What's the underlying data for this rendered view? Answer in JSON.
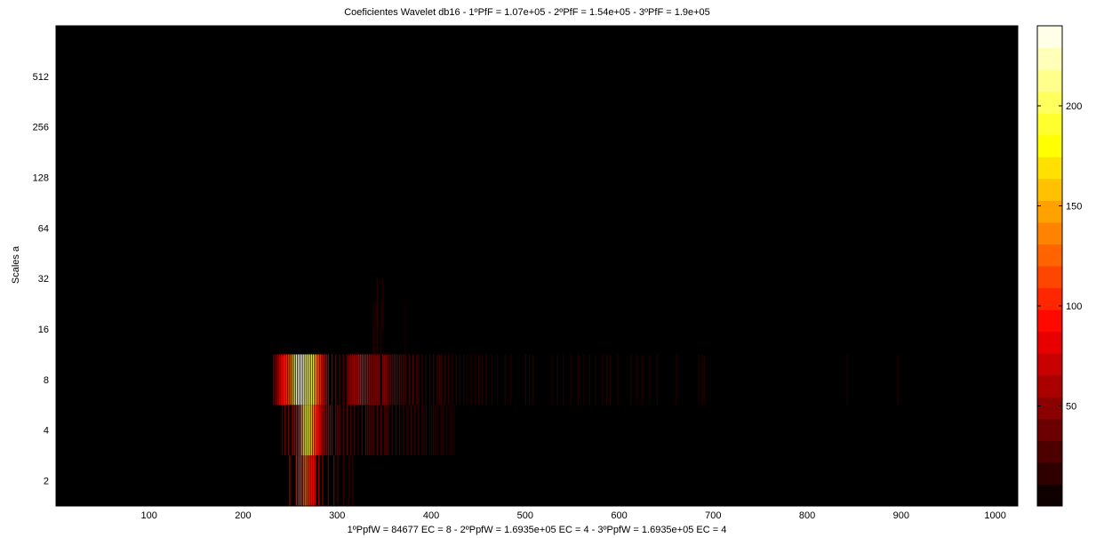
{
  "chart_data": {
    "type": "heatmap",
    "title": "Coeficientes Wavelet db16 - 1ºPfF = 1.07e+05 - 2ºPfF = 1.54e+05 - 3ºPfF = 1.9e+05",
    "xlabel": "1ºPpfW = 84677 EC = 8  -  2ºPpfW = 1.6935e+05 EC = 4  -  3ºPpfW = 1.6935e+05 EC = 4",
    "ylabel": "Scales a",
    "x_range": [
      1,
      1024
    ],
    "x_ticks": [
      100,
      200,
      300,
      400,
      500,
      600,
      700,
      800,
      900,
      1000
    ],
    "y_scale": "log2",
    "y_ticks": [
      2,
      4,
      8,
      16,
      32,
      64,
      128,
      256,
      512
    ],
    "background_value": 0,
    "colormap": "hot",
    "colorbar": {
      "range": [
        0,
        240
      ],
      "ticks": [
        50,
        100,
        150,
        200
      ],
      "steps": 22
    },
    "rows": [
      {
        "scale": 2,
        "bars": [
          [
            249,
            55
          ],
          [
            256,
            80
          ],
          [
            258,
            90
          ],
          [
            260,
            110
          ],
          [
            262,
            95
          ],
          [
            264,
            120
          ],
          [
            266,
            130
          ],
          [
            268,
            115
          ],
          [
            270,
            105
          ],
          [
            272,
            95
          ],
          [
            274,
            85
          ],
          [
            276,
            70
          ],
          [
            280,
            60
          ],
          [
            284,
            45
          ],
          [
            290,
            35
          ],
          [
            296,
            40
          ],
          [
            300,
            25
          ],
          [
            306,
            20
          ],
          [
            312,
            15
          ],
          [
            316,
            15
          ]
        ]
      },
      {
        "scale": 4,
        "bars": [
          [
            241,
            30
          ],
          [
            244,
            35
          ],
          [
            248,
            45
          ],
          [
            252,
            55
          ],
          [
            254,
            60
          ],
          [
            256,
            70
          ],
          [
            258,
            90
          ],
          [
            260,
            110
          ],
          [
            262,
            140
          ],
          [
            264,
            170
          ],
          [
            266,
            185
          ],
          [
            268,
            200
          ],
          [
            270,
            185
          ],
          [
            272,
            160
          ],
          [
            274,
            140
          ],
          [
            276,
            120
          ],
          [
            278,
            100
          ],
          [
            280,
            90
          ],
          [
            282,
            80
          ],
          [
            284,
            70
          ],
          [
            286,
            65
          ],
          [
            288,
            55
          ],
          [
            290,
            55
          ],
          [
            292,
            50
          ],
          [
            294,
            45
          ],
          [
            298,
            40
          ],
          [
            300,
            40
          ],
          [
            302,
            35
          ],
          [
            306,
            30
          ],
          [
            310,
            30
          ],
          [
            314,
            25
          ],
          [
            318,
            25
          ],
          [
            322,
            20
          ],
          [
            326,
            30
          ],
          [
            330,
            35
          ],
          [
            332,
            30
          ],
          [
            334,
            35
          ],
          [
            336,
            30
          ],
          [
            338,
            28
          ],
          [
            342,
            30
          ],
          [
            346,
            28
          ],
          [
            350,
            25
          ],
          [
            352,
            30
          ],
          [
            354,
            25
          ],
          [
            358,
            22
          ],
          [
            362,
            25
          ],
          [
            366,
            22
          ],
          [
            370,
            20
          ],
          [
            374,
            22
          ],
          [
            378,
            20
          ],
          [
            382,
            18
          ],
          [
            386,
            20
          ],
          [
            390,
            18
          ],
          [
            392,
            16
          ],
          [
            394,
            18
          ],
          [
            398,
            16
          ],
          [
            400,
            15
          ],
          [
            402,
            16
          ],
          [
            404,
            14
          ],
          [
            406,
            15
          ],
          [
            410,
            14
          ],
          [
            412,
            13
          ],
          [
            416,
            12
          ],
          [
            420,
            12
          ],
          [
            422,
            11
          ],
          [
            424,
            10
          ]
        ]
      },
      {
        "scale": 8,
        "bars": [
          [
            232,
            40
          ],
          [
            234,
            50
          ],
          [
            236,
            60
          ],
          [
            238,
            70
          ],
          [
            240,
            80
          ],
          [
            242,
            90
          ],
          [
            244,
            100
          ],
          [
            246,
            110
          ],
          [
            248,
            120
          ],
          [
            250,
            130
          ],
          [
            252,
            150
          ],
          [
            254,
            170
          ],
          [
            256,
            200
          ],
          [
            258,
            220
          ],
          [
            260,
            235
          ],
          [
            262,
            220
          ],
          [
            264,
            210
          ],
          [
            266,
            200
          ],
          [
            268,
            215
          ],
          [
            270,
            205
          ],
          [
            272,
            190
          ],
          [
            274,
            175
          ],
          [
            276,
            160
          ],
          [
            278,
            140
          ],
          [
            280,
            120
          ],
          [
            282,
            110
          ],
          [
            284,
            95
          ],
          [
            286,
            80
          ],
          [
            288,
            70
          ],
          [
            290,
            55
          ],
          [
            294,
            45
          ],
          [
            298,
            35
          ],
          [
            302,
            25
          ],
          [
            306,
            30
          ],
          [
            310,
            35
          ],
          [
            312,
            45
          ],
          [
            314,
            50
          ],
          [
            316,
            60
          ],
          [
            318,
            70
          ],
          [
            320,
            75
          ],
          [
            322,
            85
          ],
          [
            324,
            90
          ],
          [
            326,
            85
          ],
          [
            328,
            80
          ],
          [
            330,
            75
          ],
          [
            332,
            70
          ],
          [
            334,
            65
          ],
          [
            336,
            60
          ],
          [
            338,
            55
          ],
          [
            340,
            50
          ],
          [
            342,
            45
          ],
          [
            344,
            40
          ],
          [
            348,
            45
          ],
          [
            350,
            50
          ],
          [
            352,
            55
          ],
          [
            354,
            45
          ],
          [
            356,
            40
          ],
          [
            358,
            35
          ],
          [
            360,
            40
          ],
          [
            362,
            38
          ],
          [
            364,
            30
          ],
          [
            366,
            35
          ],
          [
            368,
            28
          ],
          [
            370,
            30
          ],
          [
            372,
            25
          ],
          [
            376,
            25
          ],
          [
            380,
            28
          ],
          [
            384,
            22
          ],
          [
            386,
            20
          ],
          [
            390,
            18
          ],
          [
            394,
            15
          ],
          [
            398,
            15
          ],
          [
            402,
            18
          ],
          [
            406,
            20
          ],
          [
            408,
            22
          ],
          [
            410,
            20
          ],
          [
            414,
            18
          ],
          [
            418,
            16
          ],
          [
            422,
            15
          ],
          [
            426,
            14
          ],
          [
            430,
            12
          ],
          [
            434,
            12
          ],
          [
            438,
            10
          ],
          [
            442,
            12
          ],
          [
            446,
            10
          ],
          [
            450,
            14
          ],
          [
            454,
            12
          ],
          [
            458,
            15
          ],
          [
            464,
            12
          ],
          [
            470,
            10
          ],
          [
            478,
            12
          ],
          [
            484,
            10
          ],
          [
            500,
            15
          ],
          [
            504,
            14
          ],
          [
            508,
            12
          ],
          [
            528,
            10
          ],
          [
            534,
            12
          ],
          [
            540,
            10
          ],
          [
            548,
            10
          ],
          [
            556,
            12
          ],
          [
            562,
            10
          ],
          [
            568,
            12
          ],
          [
            574,
            10
          ],
          [
            582,
            12
          ],
          [
            586,
            10
          ],
          [
            590,
            12
          ],
          [
            598,
            10
          ],
          [
            612,
            12
          ],
          [
            618,
            10
          ],
          [
            624,
            10
          ],
          [
            632,
            10
          ],
          [
            640,
            12
          ],
          [
            660,
            10
          ],
          [
            684,
            10
          ],
          [
            688,
            12
          ],
          [
            690,
            10
          ],
          [
            842,
            10
          ],
          [
            896,
            10
          ]
        ]
      },
      {
        "scale": 16,
        "bars": [
          [
            338,
            12
          ],
          [
            340,
            10
          ],
          [
            342,
            12
          ],
          [
            346,
            10
          ],
          [
            372,
            8
          ]
        ]
      },
      {
        "scale": 22.6,
        "bars": [
          [
            342,
            15
          ],
          [
            348,
            12
          ]
        ]
      }
    ]
  }
}
